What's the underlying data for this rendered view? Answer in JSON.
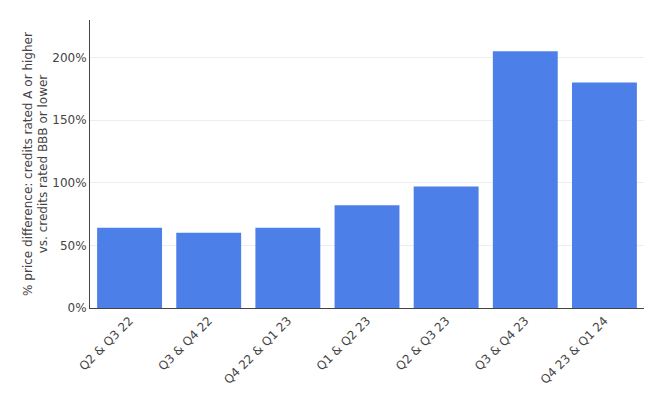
{
  "chart_data": {
    "type": "bar",
    "ylabel": "% price difference: credits rated A or higher\nvs. credits rated BBB or lower",
    "categories": [
      "Q2 & Q3 22",
      "Q3 & Q4 22",
      "Q4 22 & Q1 23",
      "Q1 & Q2 23",
      "Q2 & Q3 23",
      "Q3 & Q4 23",
      "Q4 23 & Q1 24"
    ],
    "values": [
      0.64,
      0.6,
      0.64,
      0.82,
      0.97,
      2.05,
      1.8
    ],
    "color": "#4d7fe8",
    "ylim": [
      0,
      2.3
    ],
    "yticks": [
      {
        "value": 0,
        "label": "0%"
      },
      {
        "value": 0.5,
        "label": "50%"
      },
      {
        "value": 1.0,
        "label": "100%"
      },
      {
        "value": 1.5,
        "label": "150%"
      },
      {
        "value": 2.0,
        "label": "200%"
      }
    ],
    "grid": true
  }
}
